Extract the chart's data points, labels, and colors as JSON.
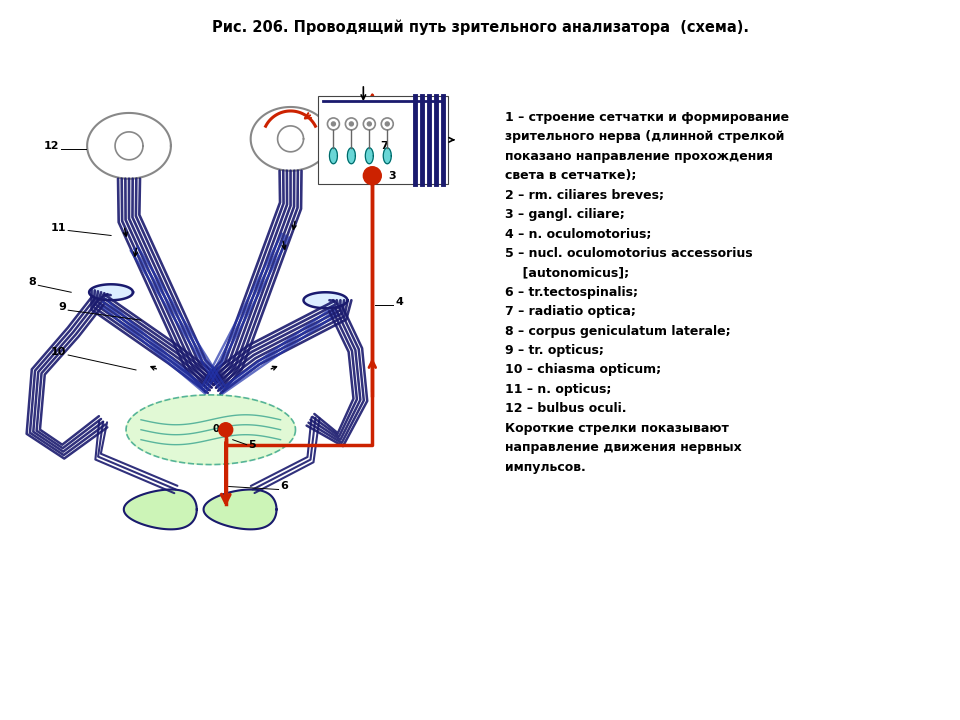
{
  "title": "Рис. 206. Проводящий путь зрительного анализатора  (схема).",
  "title_fontsize": 10.5,
  "background_color": "#ffffff",
  "legend_lines": [
    [
      "1 – ",
      "строение сетчатки и формирование"
    ],
    [
      "",
      "зрительного нерва (длинной стрелкой"
    ],
    [
      "",
      "показано направление прохождения"
    ],
    [
      "",
      "света в сетчатке);"
    ],
    [
      "2 – ",
      "rm. ciliares breves;"
    ],
    [
      "3 – ",
      "gangl. ciliare;"
    ],
    [
      "4 – ",
      "n. oculomotorius;"
    ],
    [
      "5 – ",
      "nucl. oculomotorius accessorius"
    ],
    [
      "",
      "    [autonomicus];"
    ],
    [
      "6 – ",
      "tr.tectospinalis;"
    ],
    [
      "7 – ",
      "radiatio optica;"
    ],
    [
      "8 – ",
      "corpus geniculatum laterale;"
    ],
    [
      "9 – ",
      "tr. opticus;"
    ],
    [
      "10 – ",
      "chiasma opticum;"
    ],
    [
      "11 – ",
      "n. opticus;"
    ],
    [
      "12 – ",
      "bulbus oculi."
    ],
    [
      "",
      "Короткие стрелки показывают"
    ],
    [
      "",
      "направление движения нервных"
    ],
    [
      "",
      "импульсов."
    ]
  ],
  "dark_blue": "#1a1a6e",
  "mid_blue": "#2233aa",
  "red": "#cc2200",
  "teal": "#008877",
  "light_green": "#aaee88",
  "cyan": "#44cccc",
  "gray_eye": "#888888",
  "dashed_teal": "#008877"
}
